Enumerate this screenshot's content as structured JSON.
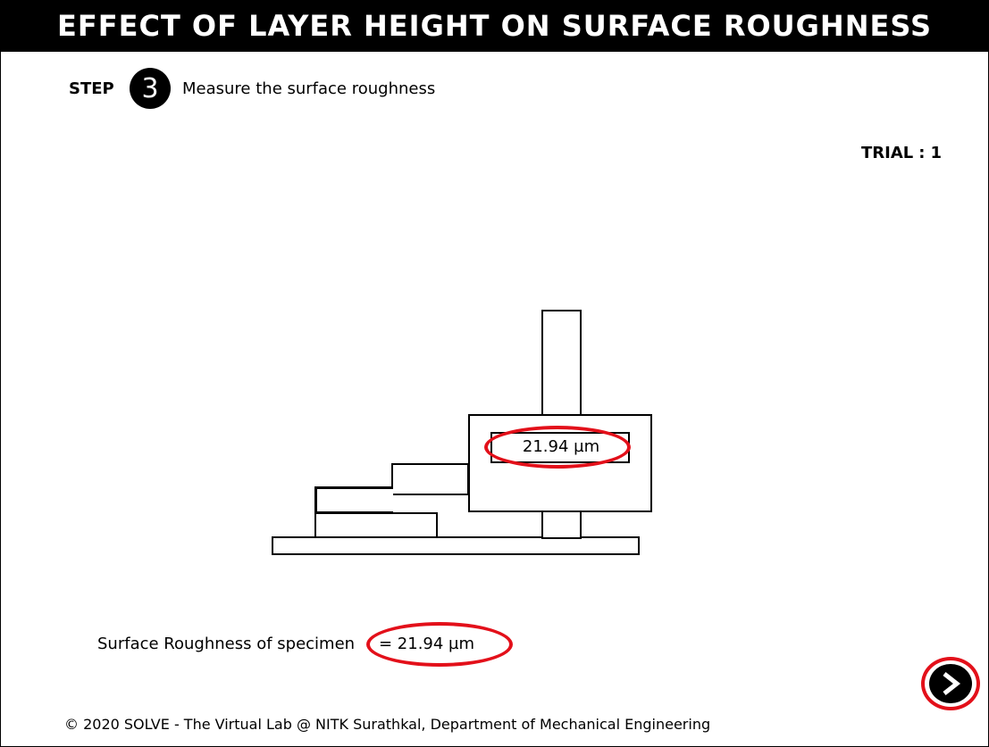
{
  "header": {
    "title": "EFFECT OF LAYER HEIGHT ON SURFACE ROUGHNESS"
  },
  "step": {
    "label": "STEP",
    "number": "3",
    "instruction": "Measure the surface roughness"
  },
  "trial": {
    "label": "TRIAL",
    "separator": ":",
    "value": "1"
  },
  "apparatus": {
    "readout": "21.94 µm"
  },
  "result": {
    "label": "Surface Roughness of specimen",
    "value": "= 21.94 µm"
  },
  "navigation": {
    "next_icon": "chevron-right-icon"
  },
  "highlight_color": "#e3101a",
  "footer": {
    "text": "© 2020 SOLVE - The Virtual Lab @ NITK Surathkal, Department of Mechanical Engineering"
  }
}
